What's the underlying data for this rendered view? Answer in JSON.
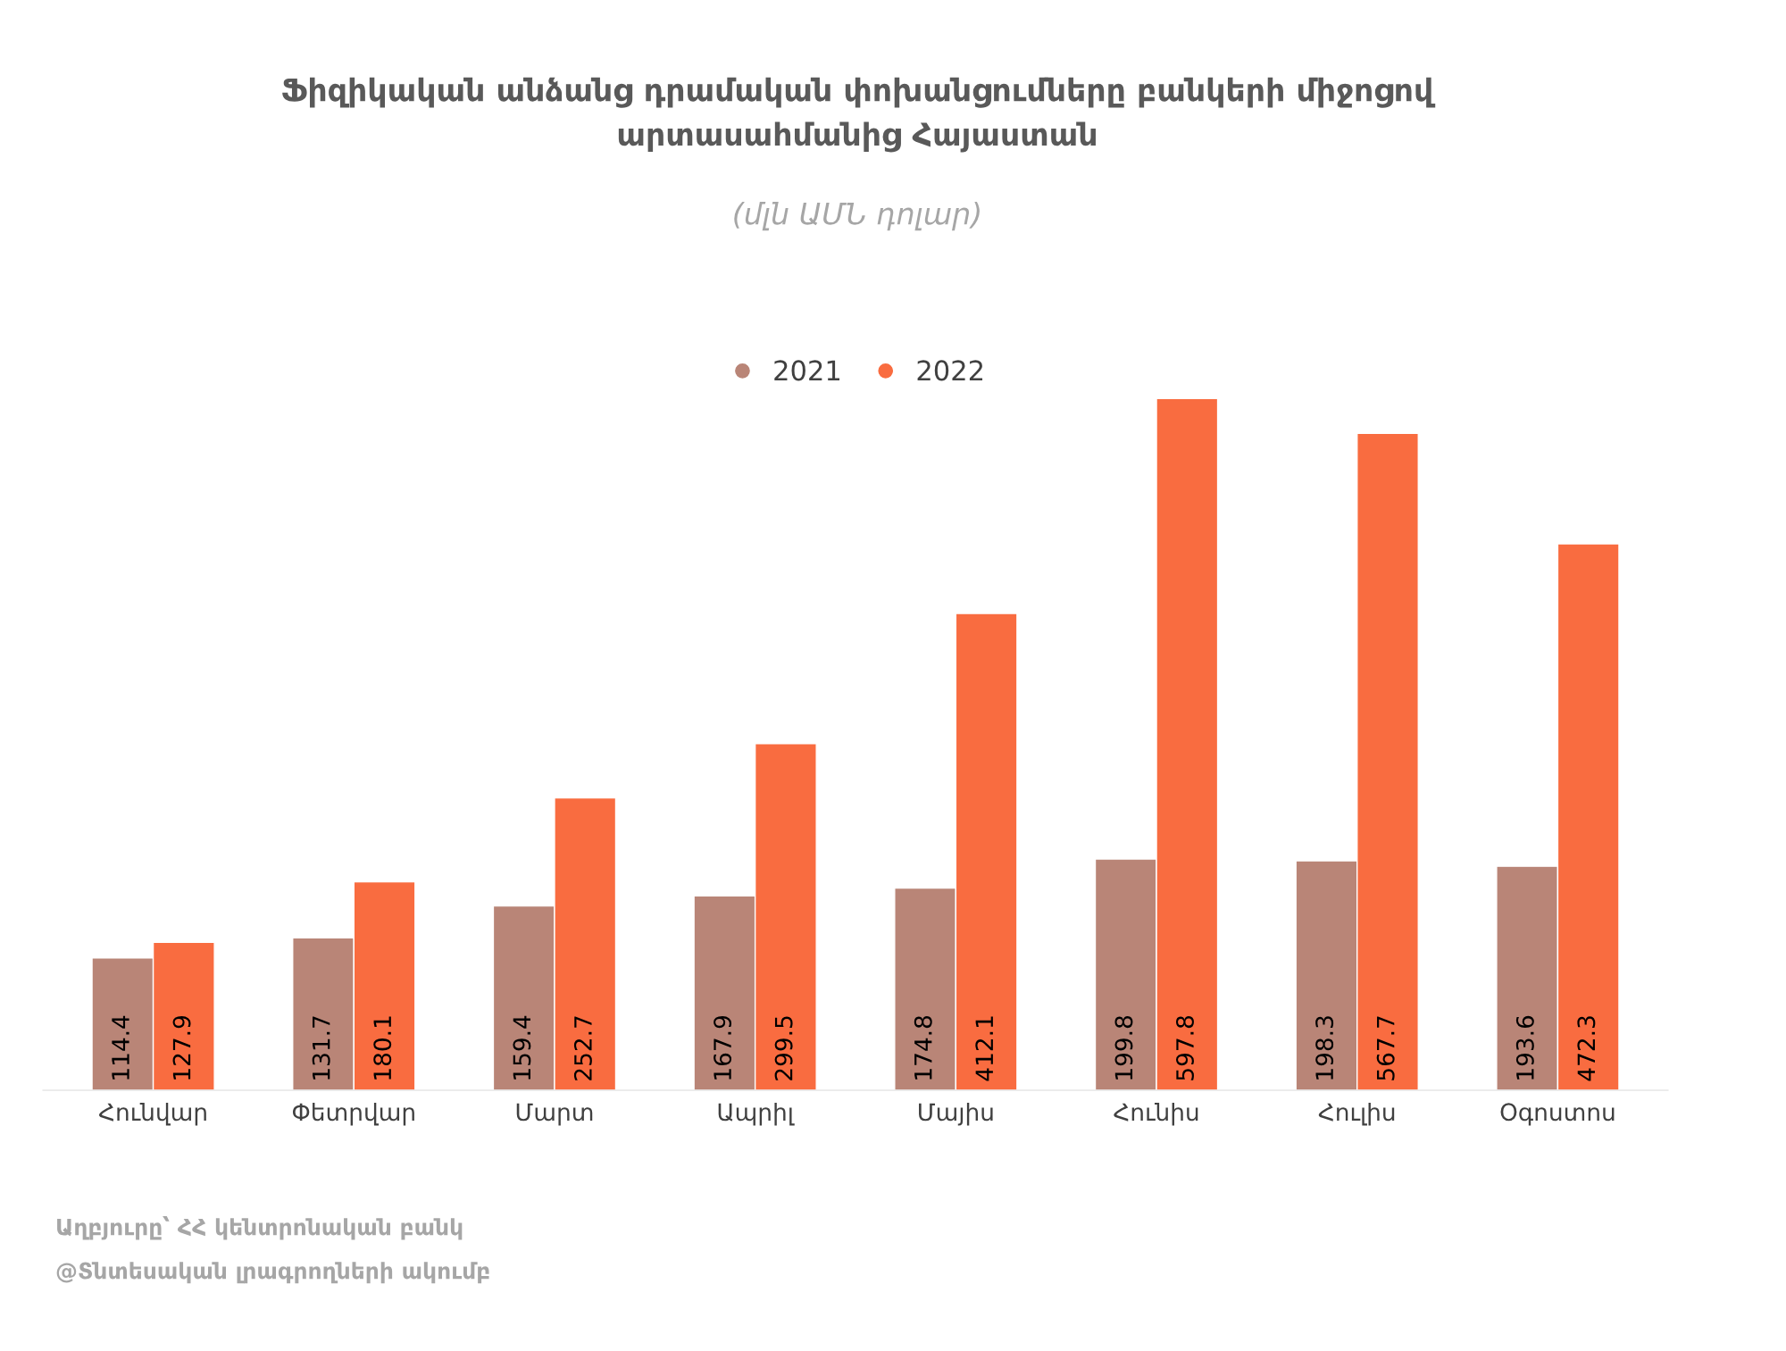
{
  "chart_data": {
    "type": "bar",
    "title": "Ֆիզիկական անձանց դրամական փոխանցումները բանկերի միջոցով\nարտասահմանից Հայաստան",
    "subtitle": "(մլն ԱՄՆ դոլար)",
    "categories": [
      "Հունվար",
      "Փետրվար",
      "Մարտ",
      "Ապրիլ",
      "Մայիս",
      "Հունիս",
      "Հուլիս",
      "Օգոստոս"
    ],
    "series": [
      {
        "name": "2021",
        "color": "#b98577",
        "values": [
          114.4,
          131.7,
          159.4,
          167.9,
          174.8,
          199.8,
          198.3,
          193.6
        ]
      },
      {
        "name": "2022",
        "color": "#f96c40",
        "values": [
          127.9,
          180.1,
          252.7,
          299.5,
          412.1,
          597.8,
          567.7,
          472.3
        ]
      }
    ],
    "data_labels": true,
    "legend": "top",
    "marker": "circle",
    "grid": false,
    "annotations": [
      "Աղբյուրը՝ ՀՀ կենտրոնական բանկ",
      "@Տնտեսական լրագրողների ակումբ"
    ]
  }
}
